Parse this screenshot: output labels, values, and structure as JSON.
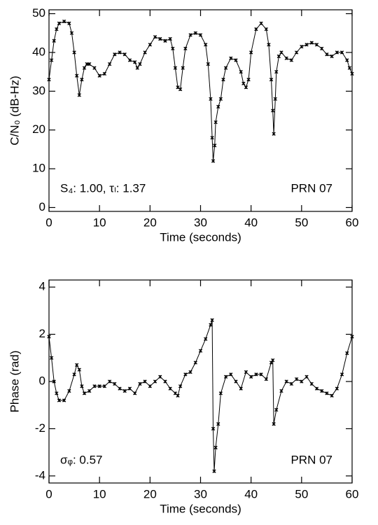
{
  "chart_data": [
    {
      "type": "line",
      "color": "#000000",
      "x_label": "Time (seconds)",
      "y_label": "C/N₀ (dB-Hz)",
      "annotations": [
        "S₄: 1.00,  τₗ: 1.37",
        "PRN 07"
      ],
      "xlim": [
        0,
        60
      ],
      "xticks": [
        0,
        10,
        20,
        30,
        40,
        50,
        60
      ],
      "ylim": [
        -1,
        51
      ],
      "yticks": [
        0,
        10,
        20,
        30,
        40,
        50
      ],
      "x": [
        0,
        0.5,
        1,
        1.5,
        2,
        3,
        4,
        4.5,
        5,
        5.5,
        6,
        6.5,
        7,
        7.5,
        8,
        9,
        10,
        11,
        12,
        13,
        14,
        15,
        16,
        17,
        17.5,
        18,
        19,
        20,
        21,
        22,
        23,
        24,
        24.5,
        25,
        25.5,
        26,
        26.5,
        27,
        28,
        29,
        30,
        31,
        31.5,
        32,
        32.3,
        32.5,
        32.8,
        33,
        33.5,
        34,
        34.5,
        35,
        36,
        37,
        38,
        38.5,
        39,
        39.5,
        40,
        41,
        42,
        43,
        43.5,
        44,
        44.3,
        44.5,
        44.8,
        45,
        45.5,
        46,
        47,
        48,
        49,
        50,
        51,
        52,
        53,
        54,
        55,
        56,
        57,
        58,
        59,
        59.5,
        60
      ],
      "values": [
        33,
        38,
        43,
        46,
        47.5,
        48,
        47.5,
        45,
        40,
        34,
        29,
        33,
        36,
        37,
        37,
        36,
        34,
        34.5,
        37,
        39.5,
        40,
        39.5,
        38,
        37.5,
        36,
        37,
        40,
        42,
        44,
        43.5,
        43,
        43.5,
        41,
        36,
        31,
        30.5,
        36,
        41,
        44.5,
        45,
        44.5,
        42,
        37,
        28,
        18,
        12,
        16,
        22,
        26,
        28,
        33,
        36,
        38.5,
        38,
        35,
        32,
        31,
        33,
        40,
        46,
        47.5,
        46,
        42,
        33,
        25,
        19,
        28,
        35,
        39,
        40,
        38.5,
        38,
        40,
        41.5,
        42,
        42.5,
        42,
        41,
        39.5,
        39,
        40,
        40,
        38,
        36,
        34.5
      ]
    },
    {
      "type": "line",
      "color": "#000000",
      "x_label": "Time (seconds)",
      "y_label": "Phase (rad)",
      "annotations": [
        "σᵩ: 0.57",
        "PRN 07"
      ],
      "xlim": [
        0,
        60
      ],
      "xticks": [
        0,
        10,
        20,
        30,
        40,
        50,
        60
      ],
      "ylim": [
        -4.3,
        4.3
      ],
      "yticks": [
        -4,
        -2,
        0,
        2,
        4
      ],
      "x": [
        0,
        0.5,
        1,
        1.5,
        2,
        3,
        4,
        5,
        5.5,
        6,
        6.5,
        7,
        8,
        9,
        10,
        11,
        12,
        13,
        14,
        15,
        16,
        17,
        18,
        19,
        20,
        21,
        22,
        23,
        24,
        25,
        25.5,
        26,
        27,
        28,
        29,
        30,
        31,
        32,
        32.3,
        32.5,
        32.7,
        33,
        33.5,
        34,
        35,
        36,
        37,
        38,
        39,
        40,
        41,
        42,
        43,
        44,
        44.3,
        44.5,
        45,
        46,
        47,
        48,
        49,
        50,
        51,
        52,
        53,
        54,
        55,
        56,
        57,
        58,
        59,
        60
      ],
      "values": [
        1.9,
        1,
        0,
        -0.5,
        -0.8,
        -0.8,
        -0.4,
        0.3,
        0.7,
        0.5,
        -0.2,
        -0.5,
        -0.4,
        -0.2,
        -0.2,
        -0.2,
        0,
        -0.1,
        -0.3,
        -0.4,
        -0.3,
        -0.5,
        -0.1,
        0,
        -0.2,
        0,
        0.2,
        0,
        -0.3,
        -0.5,
        -0.6,
        -0.2,
        0.3,
        0.4,
        0.8,
        1.3,
        1.8,
        2.4,
        2.6,
        -2,
        -3.8,
        -2.8,
        -1.8,
        -0.5,
        0.2,
        0.3,
        0,
        -0.3,
        0.4,
        0.2,
        0.3,
        0.3,
        0.1,
        0.8,
        0.9,
        -1.8,
        -1.2,
        -0.4,
        0,
        -0.1,
        0.1,
        0,
        0.2,
        -0.1,
        -0.3,
        -0.4,
        -0.5,
        -0.6,
        -0.3,
        0.3,
        1.2,
        1.9
      ]
    }
  ]
}
